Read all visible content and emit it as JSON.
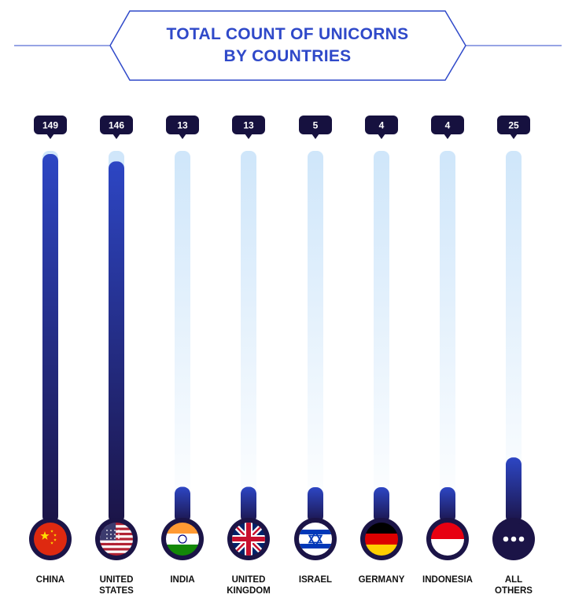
{
  "title": {
    "line1": "TOTAL COUNT OF UNICORNS",
    "line2": "BY COUNTRIES"
  },
  "colors": {
    "accent": "#2f49c9",
    "bar_dark": "#1b1447",
    "track": "#d6ebfb",
    "badge": "#16113f"
  },
  "chart_data": {
    "type": "bar",
    "title": "TOTAL COUNT OF UNICORNS BY COUNTRIES",
    "categories": [
      "CHINA",
      "UNITED STATES",
      "INDIA",
      "UNITED KINGDOM",
      "ISRAEL",
      "GERMANY",
      "INDONESIA",
      "ALL OTHERS"
    ],
    "label_lines": [
      [
        "CHINA"
      ],
      [
        "UNITED",
        "STATES"
      ],
      [
        "INDIA"
      ],
      [
        "UNITED",
        "KINGDOM"
      ],
      [
        "ISRAEL"
      ],
      [
        "GERMANY"
      ],
      [
        "INDONESIA"
      ],
      [
        "ALL",
        "OTHERS"
      ]
    ],
    "values": [
      149,
      146,
      13,
      13,
      5,
      4,
      4,
      25
    ],
    "value_labels": [
      "149",
      "146",
      "13",
      "13",
      "5",
      "4",
      "4",
      "25"
    ],
    "icons": [
      "china-flag-icon",
      "us-flag-icon",
      "india-flag-icon",
      "uk-flag-icon",
      "israel-flag-icon",
      "germany-flag-icon",
      "indonesia-flag-icon",
      "ellipsis-icon"
    ],
    "ylim": [
      0,
      149
    ],
    "xlabel": "",
    "ylabel": ""
  }
}
